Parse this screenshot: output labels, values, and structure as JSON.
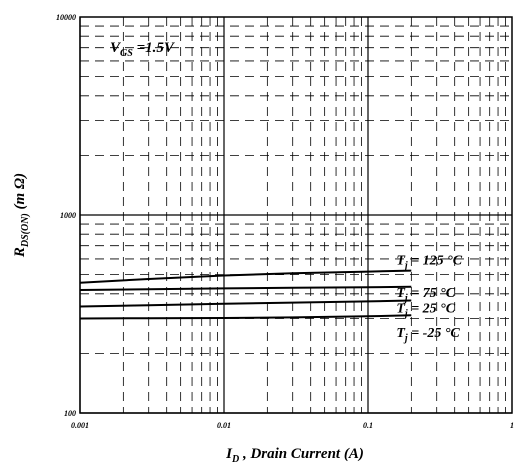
{
  "chart_data": {
    "type": "line",
    "title": "",
    "xlabel": {
      "main": "I",
      "sub": "D",
      "rest": " , Drain Current (A)"
    },
    "ylabel": {
      "main": "R",
      "sub": "DS(ON)",
      "rest": " (m Ω)"
    },
    "x_scale": "log",
    "y_scale": "log",
    "xlim": [
      0.001,
      1
    ],
    "ylim": [
      100,
      10000
    ],
    "x_ticks": [
      0.001,
      0.01,
      0.1,
      1
    ],
    "x_tick_labels": [
      "0.001",
      "0.01",
      "0.1",
      "1"
    ],
    "y_ticks": [
      100,
      1000,
      10000
    ],
    "y_tick_labels": [
      "100",
      "1000",
      "10000"
    ],
    "grid": true,
    "annotation": {
      "main": "V",
      "sub": "GS",
      "rest": " =1.5V"
    },
    "series": [
      {
        "name": "T_j = 125°C",
        "label": {
          "main": "T",
          "sub": "j",
          "rest": " = 125 °C"
        },
        "x": [
          0.001,
          0.003,
          0.01,
          0.03,
          0.1,
          0.2
        ],
        "y": [
          455,
          475,
          495,
          508,
          518,
          524
        ]
      },
      {
        "name": "T_j = 75°C",
        "label": {
          "main": "T",
          "sub": "j",
          "rest": " = 75 °C"
        },
        "x": [
          0.001,
          0.003,
          0.01,
          0.03,
          0.1,
          0.2
        ],
        "y": [
          418,
          422,
          426,
          429,
          432,
          434
        ]
      },
      {
        "name": "T_j = 25°C",
        "label": {
          "main": "T",
          "sub": "j",
          "rest": " = 25 °C"
        },
        "x": [
          0.001,
          0.003,
          0.01,
          0.03,
          0.1,
          0.2
        ],
        "y": [
          345,
          350,
          356,
          361,
          366,
          370
        ]
      },
      {
        "name": "T_j = -25°C",
        "label": {
          "main": "T",
          "sub": "j",
          "rest": " = -25 °C"
        },
        "x": [
          0.001,
          0.003,
          0.01,
          0.03,
          0.1,
          0.2
        ],
        "y": [
          300,
          301,
          302,
          304,
          308,
          312
        ]
      }
    ],
    "colors": {
      "line": "#000000",
      "grid": "#000000",
      "background": "#ffffff"
    }
  }
}
